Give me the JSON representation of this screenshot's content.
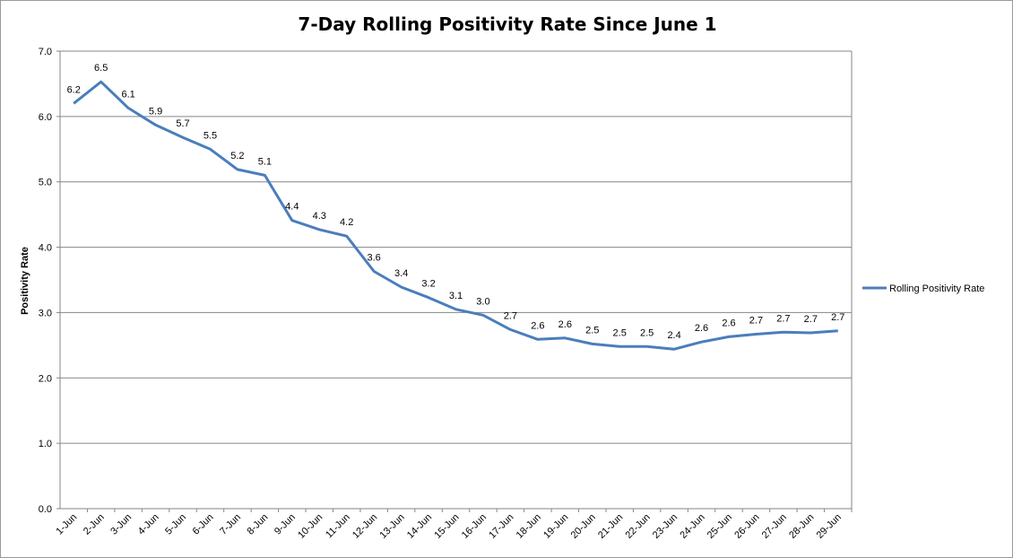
{
  "chart_data": {
    "type": "line",
    "title": "7-Day Rolling Positivity Rate Since June 1",
    "xlabel": "",
    "ylabel": "Positivity Rate",
    "ylim": [
      0,
      7
    ],
    "yticks": [
      "0.0",
      "1.0",
      "2.0",
      "3.0",
      "4.0",
      "5.0",
      "6.0",
      "7.0"
    ],
    "grid": true,
    "legend_position": "right",
    "categories": [
      "1-Jun",
      "2-Jun",
      "3-Jun",
      "4-Jun",
      "5-Jun",
      "6-Jun",
      "7-Jun",
      "8-Jun",
      "9-Jun",
      "10-Jun",
      "11-Jun",
      "12-Jun",
      "13-Jun",
      "14-Jun",
      "15-Jun",
      "16-Jun",
      "17-Jun",
      "18-Jun",
      "19-Jun",
      "20-Jun",
      "21-Jun",
      "22-Jun",
      "23-Jun",
      "24-Jun",
      "25-Jun",
      "26-Jun",
      "27-Jun",
      "28-Jun",
      "29-Jun"
    ],
    "series": [
      {
        "name": "Rolling Positivity Rate",
        "color": "#4a7ebb",
        "values": [
          6.2,
          6.53,
          6.13,
          5.87,
          5.68,
          5.5,
          5.19,
          5.1,
          4.41,
          4.27,
          4.17,
          3.63,
          3.39,
          3.23,
          3.05,
          2.96,
          2.74,
          2.59,
          2.61,
          2.52,
          2.48,
          2.48,
          2.44,
          2.55,
          2.63,
          2.67,
          2.7,
          2.69,
          2.72
        ],
        "labels": [
          "6.2",
          "6.5",
          "6.1",
          "5.9",
          "5.7",
          "5.5",
          "5.2",
          "5.1",
          "4.4",
          "4.3",
          "4.2",
          "3.6",
          "3.4",
          "3.2",
          "3.1",
          "3.0",
          "2.7",
          "2.6",
          "2.6",
          "2.5",
          "2.5",
          "2.5",
          "2.4",
          "2.6",
          "2.6",
          "2.7",
          "2.7",
          "2.7",
          "2.7"
        ]
      }
    ]
  }
}
